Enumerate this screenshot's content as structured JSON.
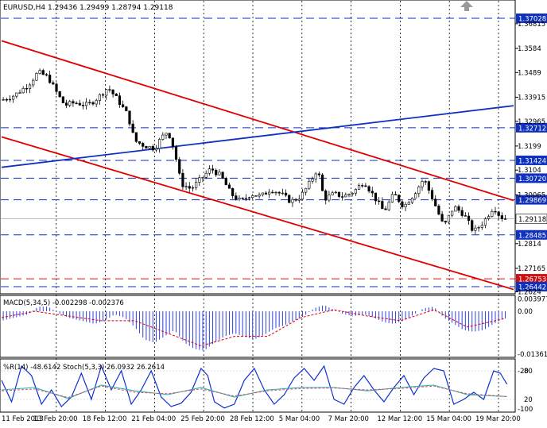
{
  "header": {
    "symbol": "EURUSD,H4",
    "ohlc": "1.29436 1.29499 1.28794 1.29118",
    "corner_icon": "up-arrow-icon"
  },
  "colors": {
    "candle": "#000000",
    "resistance_line": "#e00000",
    "trend_line": "#1030c0",
    "level_line": "#1030c0",
    "level_badge": "#1030c0",
    "red_badge": "#d01010",
    "macd_hist": "#3040e0",
    "macd_signal": "#e00000",
    "wpr": "#1030d0",
    "stoch_main": "#20b0c0",
    "stoch_signal": "#e05050"
  },
  "chart_data": [
    {
      "type": "candlestick",
      "title": "EURUSD,H4",
      "ohlc_last": {
        "open": 1.29436,
        "high": 1.29499,
        "low": 1.28794,
        "close": 1.29118
      },
      "y_ticks": [
        1.36815,
        1.3584,
        1.3489,
        1.33915,
        1.32965,
        1.3199,
        1.3104,
        1.30065,
        1.2814,
        1.27165,
        1.2624
      ],
      "ylim": [
        1.2616,
        1.3775
      ],
      "current_price": 1.29118,
      "levels": [
        {
          "label": "1.37028",
          "value": 1.37028,
          "color": "blue"
        },
        {
          "label": "1.32712",
          "value": 1.32712,
          "color": "blue"
        },
        {
          "label": "1.31424",
          "value": 1.31424,
          "color": "blue"
        },
        {
          "label": "1.30720",
          "value": 1.3072,
          "color": "blue"
        },
        {
          "label": "1.29869",
          "value": 1.29869,
          "color": "blue"
        },
        {
          "label": "1.28485",
          "value": 1.28485,
          "color": "blue"
        },
        {
          "label": "1.26753",
          "value": 1.26753,
          "color": "red"
        },
        {
          "label": "1.26442",
          "value": 1.26442,
          "color": "blue"
        }
      ],
      "x_labels": [
        "11 Feb 2013",
        "13 Feb 20:00",
        "18 Feb 12:00",
        "21 Feb 04:00",
        "25 Feb 20:00",
        "28 Feb 12:00",
        "5 Mar 04:00",
        "7 Mar 20:00",
        "12 Mar 12:00",
        "15 Mar 04:00",
        "19 Mar 20:00"
      ],
      "close_path": [
        [
          0,
          1.338
        ],
        [
          4,
          1.34
        ],
        [
          8,
          1.344
        ],
        [
          11,
          1.349
        ],
        [
          14,
          1.347
        ],
        [
          17,
          1.34
        ],
        [
          19,
          1.336
        ],
        [
          22,
          1.337
        ],
        [
          26,
          1.336
        ],
        [
          29,
          1.339
        ],
        [
          32,
          1.343
        ],
        [
          35,
          1.338
        ],
        [
          38,
          1.332
        ],
        [
          40,
          1.322
        ],
        [
          43,
          1.32
        ],
        [
          46,
          1.319
        ],
        [
          48,
          1.323
        ],
        [
          50,
          1.326
        ],
        [
          52,
          1.318
        ],
        [
          54,
          1.305
        ],
        [
          57,
          1.303
        ],
        [
          60,
          1.307
        ],
        [
          63,
          1.311
        ],
        [
          66,
          1.308
        ],
        [
          69,
          1.301
        ],
        [
          72,
          1.298
        ],
        [
          75,
          1.301
        ],
        [
          78,
          1.3
        ],
        [
          81,
          1.303
        ],
        [
          84,
          1.301
        ],
        [
          87,
          1.298
        ],
        [
          90,
          1.3
        ],
        [
          93,
          1.306
        ],
        [
          95,
          1.311
        ],
        [
          97,
          1.299
        ],
        [
          100,
          1.301
        ],
        [
          103,
          1.3
        ],
        [
          106,
          1.302
        ],
        [
          109,
          1.306
        ],
        [
          112,
          1.3
        ],
        [
          115,
          1.294
        ],
        [
          118,
          1.301
        ],
        [
          121,
          1.296
        ],
        [
          124,
          1.301
        ],
        [
          127,
          1.307
        ],
        [
          130,
          1.298
        ],
        [
          133,
          1.288
        ],
        [
          136,
          1.296
        ],
        [
          139,
          1.293
        ],
        [
          142,
          1.286
        ],
        [
          145,
          1.29
        ],
        [
          148,
          1.296
        ],
        [
          150,
          1.292
        ],
        [
          152,
          1.291
        ]
      ],
      "trend_lines": [
        {
          "name": "channel-upper",
          "from": [
            0,
            1.3614
          ],
          "to": [
            154,
            1.2984
          ],
          "color": "red"
        },
        {
          "name": "channel-lower",
          "from": [
            0,
            1.3235
          ],
          "to": [
            154,
            1.2633
          ],
          "color": "red"
        },
        {
          "name": "blue-trend",
          "from": [
            0,
            1.3115
          ],
          "to": [
            154,
            1.3358
          ],
          "color": "blue"
        }
      ],
      "xlim": [
        0,
        154
      ]
    },
    {
      "type": "bar",
      "title": "MACD(5,34,5) -0.002298 -0.002376",
      "y_ticks": [
        0.003977,
        0.0,
        -0.013619
      ],
      "ylim": [
        -0.01466,
        0.00507
      ],
      "histogram": [
        [
          0,
          -0.003
        ],
        [
          4,
          -0.002
        ],
        [
          8,
          -0.001
        ],
        [
          11,
          0.0015
        ],
        [
          14,
          0.0015
        ],
        [
          17,
          -0.0005
        ],
        [
          20,
          -0.002
        ],
        [
          24,
          -0.003
        ],
        [
          28,
          -0.004
        ],
        [
          31,
          -0.003
        ],
        [
          34,
          -0.001
        ],
        [
          37,
          -0.002
        ],
        [
          40,
          -0.005
        ],
        [
          43,
          -0.009
        ],
        [
          46,
          -0.01
        ],
        [
          49,
          -0.008
        ],
        [
          52,
          -0.006
        ],
        [
          55,
          -0.01
        ],
        [
          58,
          -0.012
        ],
        [
          61,
          -0.0125
        ],
        [
          64,
          -0.01
        ],
        [
          67,
          -0.008
        ],
        [
          70,
          -0.007
        ],
        [
          73,
          -0.008
        ],
        [
          76,
          -0.009
        ],
        [
          79,
          -0.0075
        ],
        [
          82,
          -0.0055
        ],
        [
          85,
          -0.0045
        ],
        [
          88,
          -0.003
        ],
        [
          91,
          -0.0015
        ],
        [
          94,
          0.001
        ],
        [
          97,
          0.002
        ],
        [
          100,
          0.0005
        ],
        [
          103,
          -0.001
        ],
        [
          106,
          -0.0015
        ],
        [
          109,
          -0.001
        ],
        [
          112,
          -0.002
        ],
        [
          115,
          -0.0035
        ],
        [
          118,
          -0.004
        ],
        [
          121,
          -0.003
        ],
        [
          124,
          -0.001
        ],
        [
          127,
          0.001
        ],
        [
          130,
          0.0015
        ],
        [
          133,
          -0.002
        ],
        [
          136,
          -0.004
        ],
        [
          139,
          -0.006
        ],
        [
          142,
          -0.0065
        ],
        [
          145,
          -0.006
        ],
        [
          148,
          -0.004
        ],
        [
          151,
          -0.0023
        ]
      ],
      "signal": [
        [
          0,
          -0.002
        ],
        [
          10,
          0.0
        ],
        [
          20,
          -0.0015
        ],
        [
          30,
          -0.003
        ],
        [
          40,
          -0.003
        ],
        [
          50,
          -0.007
        ],
        [
          60,
          -0.011
        ],
        [
          70,
          -0.008
        ],
        [
          80,
          -0.008
        ],
        [
          90,
          -0.002
        ],
        [
          100,
          0.0005
        ],
        [
          110,
          -0.0015
        ],
        [
          120,
          -0.003
        ],
        [
          130,
          0.0005
        ],
        [
          140,
          -0.005
        ],
        [
          151,
          -0.0024
        ]
      ],
      "xlim": [
        0,
        154
      ]
    },
    {
      "type": "line",
      "title": "%R(14) -48.6142 Stoch(5,3,3) 26.0932 26.2614",
      "y_ticks_right": [
        "-20",
        "-100"
      ],
      "y_ticks_left_hint": [
        "80",
        "20"
      ],
      "ylim": [
        -100,
        0
      ],
      "wpr": [
        [
          0,
          -40
        ],
        [
          3,
          -85
        ],
        [
          6,
          -10
        ],
        [
          9,
          -30
        ],
        [
          12,
          -90
        ],
        [
          15,
          -60
        ],
        [
          18,
          -95
        ],
        [
          21,
          -75
        ],
        [
          24,
          -25
        ],
        [
          27,
          -80
        ],
        [
          30,
          -10
        ],
        [
          33,
          -60
        ],
        [
          36,
          -20
        ],
        [
          39,
          -90
        ],
        [
          42,
          -60
        ],
        [
          45,
          -20
        ],
        [
          48,
          -75
        ],
        [
          51,
          -95
        ],
        [
          54,
          -88
        ],
        [
          57,
          -65
        ],
        [
          60,
          -15
        ],
        [
          62,
          -30
        ],
        [
          64,
          -85
        ],
        [
          67,
          -98
        ],
        [
          70,
          -90
        ],
        [
          73,
          -40
        ],
        [
          76,
          -15
        ],
        [
          79,
          -60
        ],
        [
          82,
          -90
        ],
        [
          85,
          -70
        ],
        [
          88,
          -35
        ],
        [
          91,
          -15
        ],
        [
          94,
          -40
        ],
        [
          97,
          -10
        ],
        [
          100,
          -80
        ],
        [
          103,
          -90
        ],
        [
          106,
          -55
        ],
        [
          109,
          -30
        ],
        [
          112,
          -60
        ],
        [
          115,
          -85
        ],
        [
          118,
          -55
        ],
        [
          121,
          -30
        ],
        [
          124,
          -70
        ],
        [
          127,
          -35
        ],
        [
          130,
          -15
        ],
        [
          133,
          -20
        ],
        [
          136,
          -90
        ],
        [
          139,
          -80
        ],
        [
          142,
          -65
        ],
        [
          145,
          -80
        ],
        [
          148,
          -20
        ],
        [
          150,
          -25
        ],
        [
          152,
          -48
        ]
      ],
      "stoch_main": [
        [
          0,
          -60
        ],
        [
          10,
          -55
        ],
        [
          20,
          -78
        ],
        [
          30,
          -50
        ],
        [
          40,
          -62
        ],
        [
          50,
          -70
        ],
        [
          60,
          -55
        ],
        [
          70,
          -75
        ],
        [
          80,
          -60
        ],
        [
          90,
          -55
        ],
        [
          100,
          -55
        ],
        [
          110,
          -62
        ],
        [
          120,
          -55
        ],
        [
          130,
          -50
        ],
        [
          140,
          -70
        ],
        [
          152,
          -74
        ]
      ],
      "stoch_signal": [
        [
          0,
          -62
        ],
        [
          10,
          -58
        ],
        [
          20,
          -76
        ],
        [
          30,
          -52
        ],
        [
          40,
          -65
        ],
        [
          50,
          -68
        ],
        [
          60,
          -58
        ],
        [
          70,
          -73
        ],
        [
          80,
          -62
        ],
        [
          90,
          -57
        ],
        [
          100,
          -56
        ],
        [
          110,
          -60
        ],
        [
          120,
          -57
        ],
        [
          130,
          -52
        ],
        [
          140,
          -68
        ],
        [
          152,
          -74
        ]
      ],
      "xlim": [
        0,
        154
      ]
    }
  ]
}
